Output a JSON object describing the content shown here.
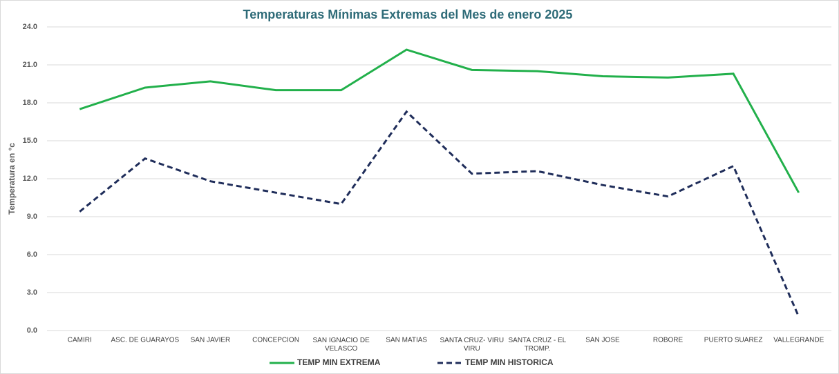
{
  "chart_data": {
    "type": "line",
    "title": "Temperaturas  Mínimas Extremas del Mes de enero 2025",
    "y_label": "Temperatura en °c",
    "categories": [
      "CAMIRI",
      "ASC. DE GUARAYOS",
      "SAN JAVIER",
      "CONCEPCION",
      "SAN IGNACIO DE VELASCO",
      "SAN MATIAS",
      "SANTA CRUZ- VIRU VIRU",
      "SANTA CRUZ - EL TROMP.",
      "SAN JOSE",
      "ROBORE",
      "PUERTO SUAREZ",
      "VALLEGRANDE"
    ],
    "series": [
      {
        "name": "TEMP MIN EXTREMA",
        "color": "#22b04b",
        "dashed": false,
        "values": [
          17.5,
          19.2,
          19.7,
          19.0,
          19.0,
          22.2,
          20.6,
          20.5,
          20.1,
          20.0,
          20.3,
          10.9
        ]
      },
      {
        "name": "TEMP MIN HISTORICA",
        "color": "#1f2d5a",
        "dashed": true,
        "values": [
          9.4,
          13.6,
          11.8,
          10.9,
          10.0,
          17.3,
          12.4,
          12.6,
          11.5,
          10.6,
          13.0,
          1.1
        ]
      }
    ],
    "ylim": [
      0,
      24
    ],
    "yticks": [
      {
        "value": 0,
        "label": "0.0"
      },
      {
        "value": 3,
        "label": "3.0"
      },
      {
        "value": 6,
        "label": "6.0"
      },
      {
        "value": 9,
        "label": "9.0"
      },
      {
        "value": 12,
        "label": "12.0"
      },
      {
        "value": 15,
        "label": "15.0"
      },
      {
        "value": 18,
        "label": "18.0"
      },
      {
        "value": 21,
        "label": "21.0"
      },
      {
        "value": 24,
        "label": "24.0"
      }
    ],
    "grid": true,
    "legend": "bottom"
  }
}
